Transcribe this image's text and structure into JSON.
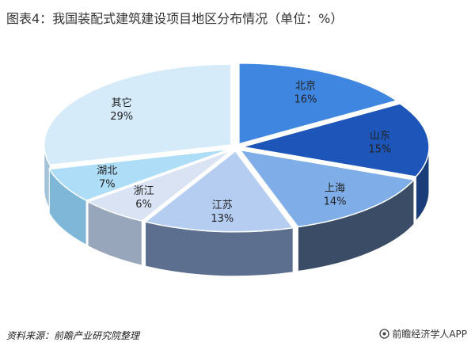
{
  "title": "图表4：我国装配式建筑建设项目地区分布情况（单位：%）",
  "chart_data": {
    "type": "pie",
    "title": "图表4：我国装配式建筑建设项目地区分布情况（单位：%）",
    "unit": "%",
    "categories": [
      "北京",
      "山东",
      "上海",
      "江苏",
      "浙江",
      "湖北",
      "其它"
    ],
    "values": [
      16,
      15,
      14,
      13,
      6,
      7,
      29
    ],
    "labels": [
      "16%",
      "15%",
      "14%",
      "13%",
      "6%",
      "7%",
      "29%"
    ],
    "colors": [
      "#3F86E0",
      "#1D55B8",
      "#7FADE8",
      "#B5CDF0",
      "#D9E3F4",
      "#AEDDF8",
      "#D6EBFA"
    ],
    "side_colors": [
      "#2C5E9C",
      "#1A3C78",
      "#3B4C66",
      "#5C6F8F",
      "#98A6BB",
      "#7FB7D9",
      "#A4C2D8"
    ],
    "style": "3d-exploded",
    "legend": "none"
  },
  "footer": {
    "source": "资料来源：前瞻产业研究院整理",
    "brand": "前瞻经济学人APP"
  }
}
